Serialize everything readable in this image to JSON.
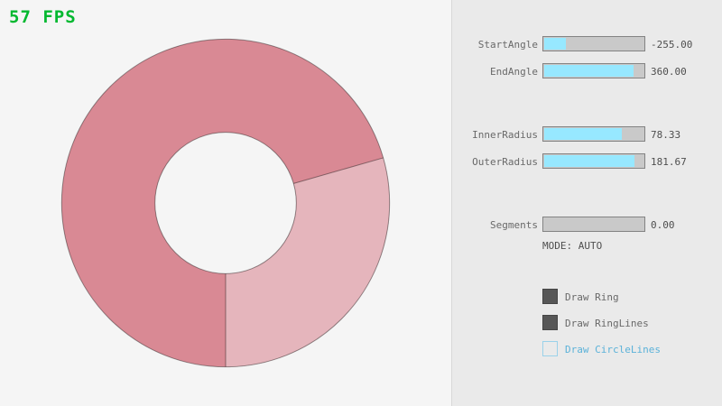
{
  "fps_label": "57 FPS",
  "ring": {
    "start_angle": -255.0,
    "end_angle": 360.0,
    "inner_radius": 78.33,
    "outer_radius": 181.67,
    "segments": 0.0
  },
  "panel": {
    "sliders": [
      {
        "label": "StartAngle",
        "value": "-255.00",
        "fill_pct": 21.7
      },
      {
        "label": "EndAngle",
        "value": "360.00",
        "fill_pct": 90.0
      },
      {
        "label": "InnerRadius",
        "value": "78.33",
        "fill_pct": 78.3
      },
      {
        "label": "OuterRadius",
        "value": "181.67",
        "fill_pct": 90.8
      },
      {
        "label": "Segments",
        "value": "0.00",
        "fill_pct": 0
      }
    ],
    "mode_label": "MODE: AUTO",
    "checkboxes": [
      {
        "label": "Draw Ring",
        "checked": true
      },
      {
        "label": "Draw RingLines",
        "checked": true
      },
      {
        "label": "Draw CircleLines",
        "checked": false
      }
    ]
  },
  "colors": {
    "fps_green": "#00b82f",
    "ring_dark": "#d98994",
    "ring_light": "#e5b5bc",
    "ring_outline": "rgba(0,0,0,0.4)",
    "slider_fill": "#97e8ff",
    "accent_blue": "#5bb2d9",
    "left_bg": "#f5f5f5",
    "panel_bg": "#eaeaea"
  }
}
